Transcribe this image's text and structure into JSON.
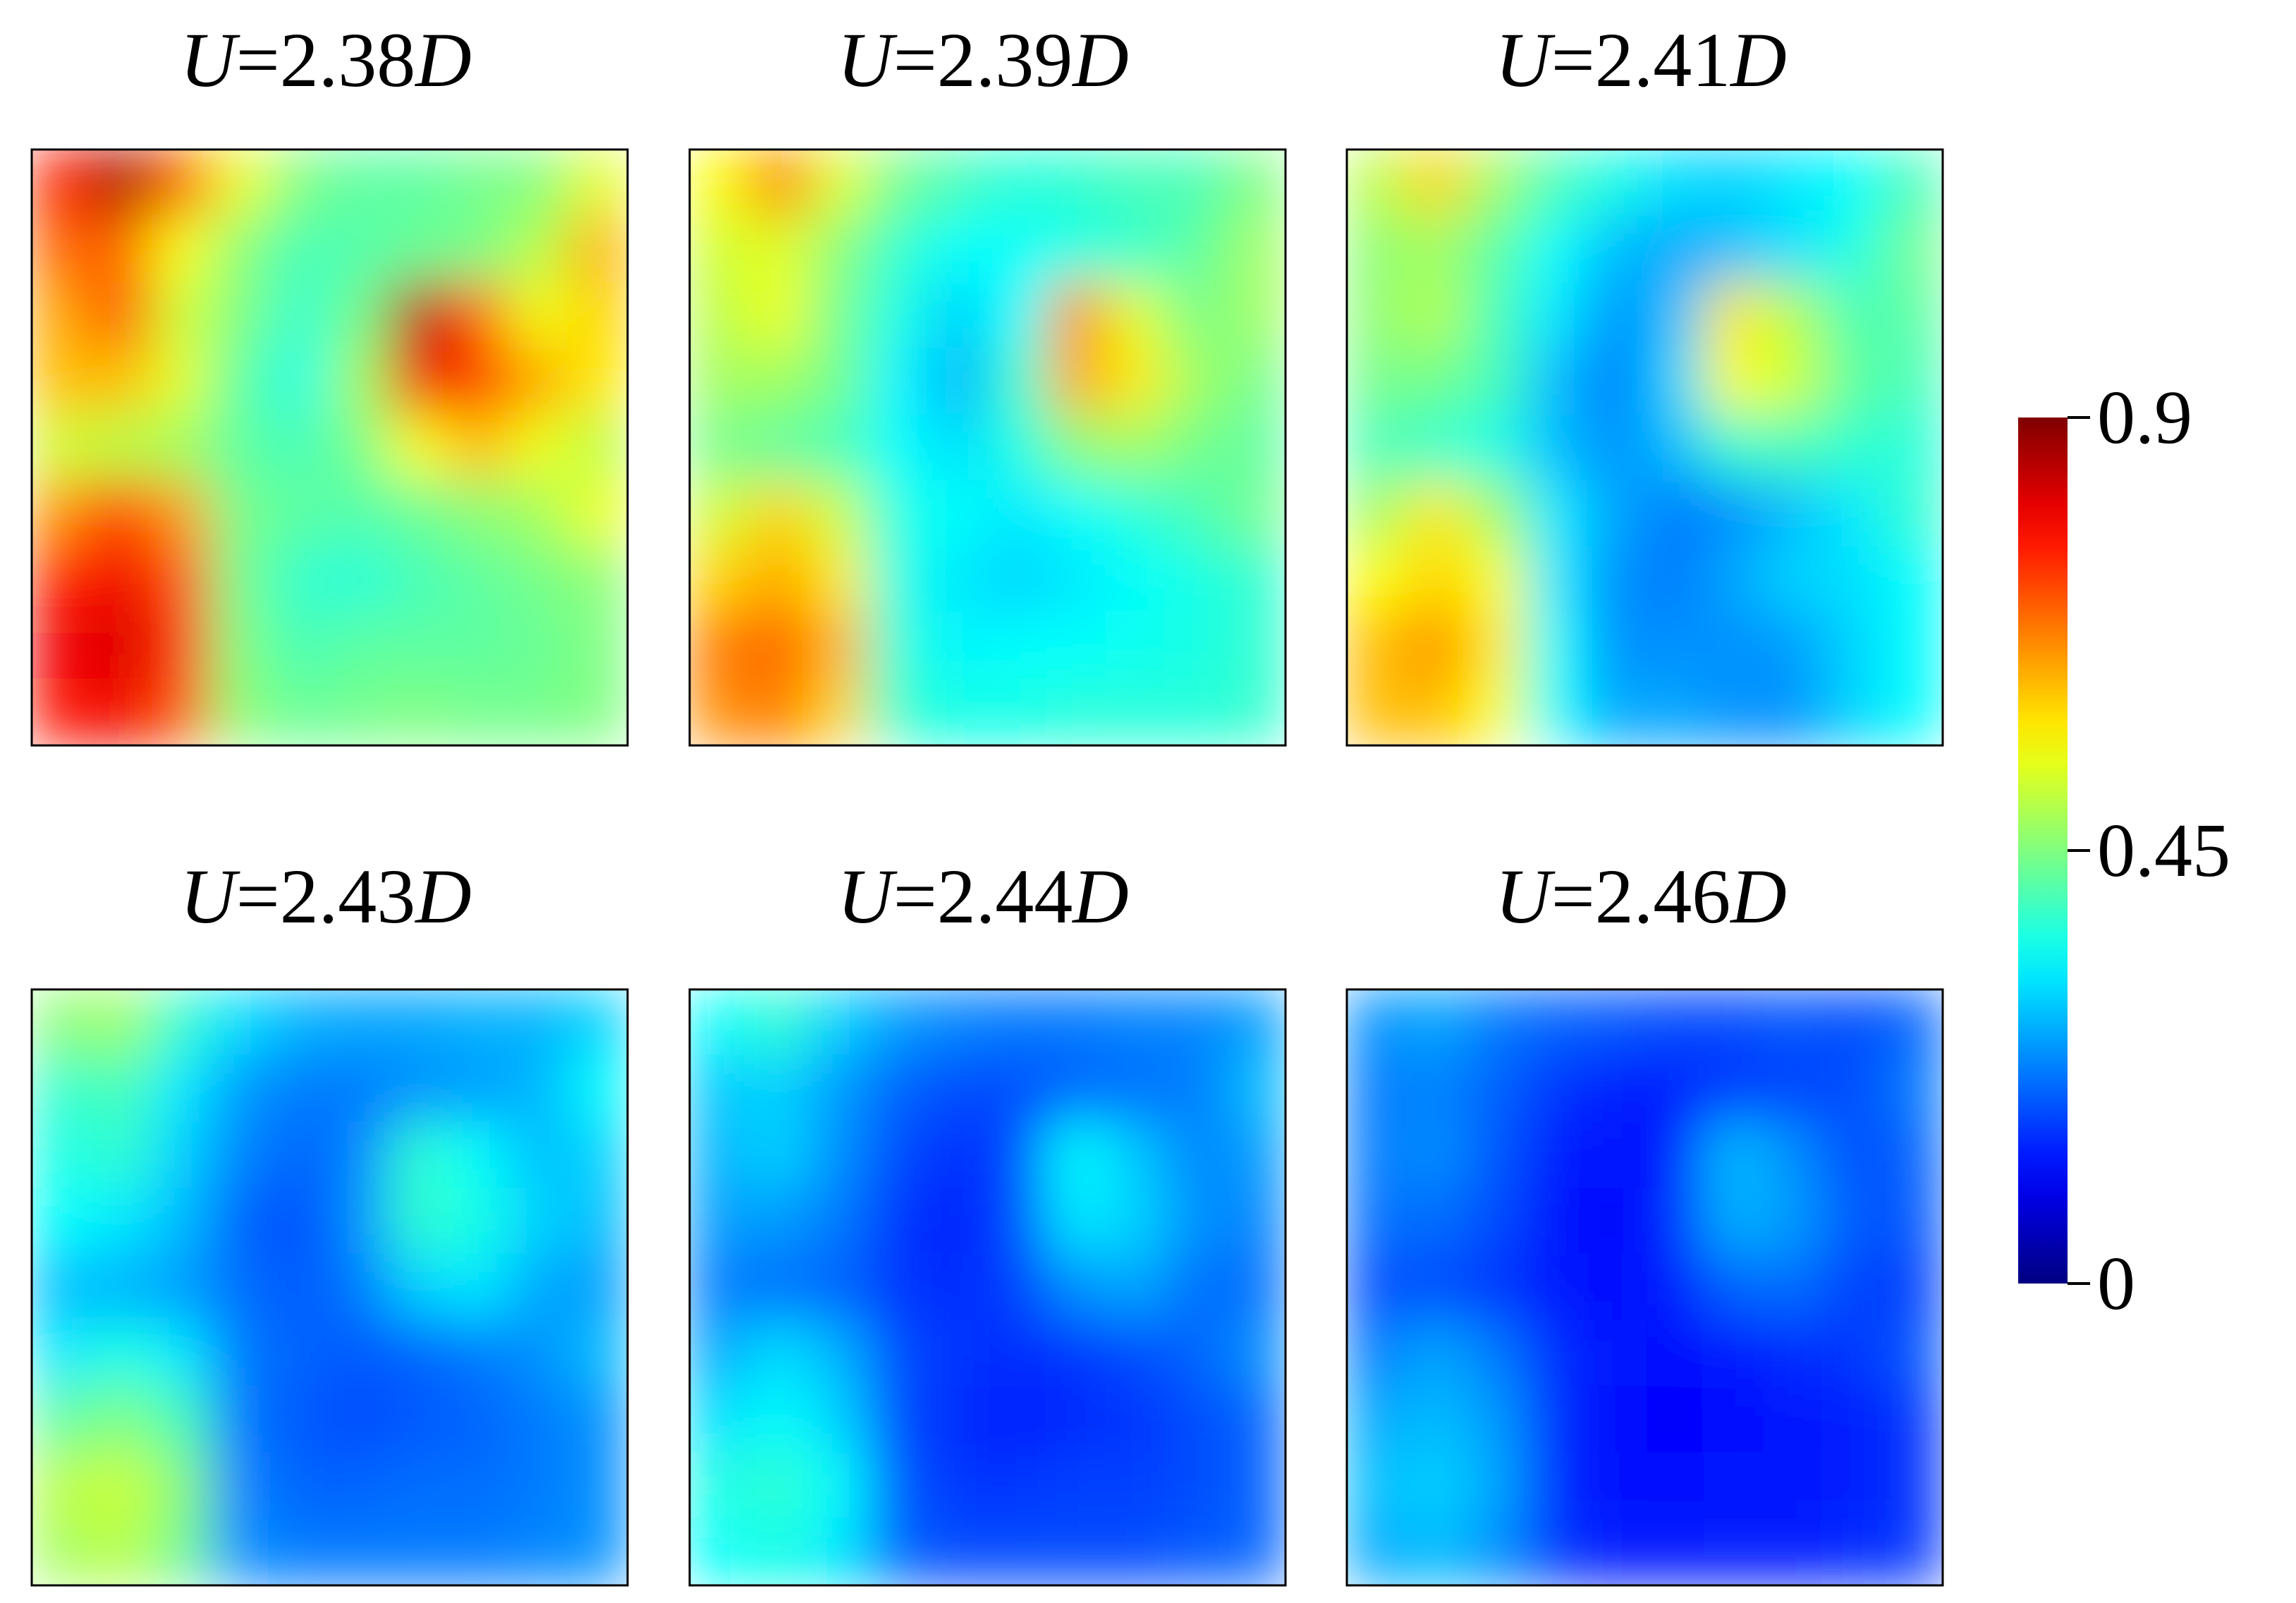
{
  "chart_data": {
    "type": "heatmap",
    "colormap": "jet",
    "colorbar": {
      "range": [
        0,
        0.9
      ],
      "ticks": [
        {
          "value": 0.9,
          "label": "0.9"
        },
        {
          "value": 0.45,
          "label": "0.45"
        },
        {
          "value": 0,
          "label": "0"
        }
      ]
    },
    "panels": [
      {
        "title_var": "U",
        "title_eq": "=2.38",
        "title_unit": "D",
        "grid": [
          [
            0.76,
            0.87,
            0.72,
            0.55,
            0.45,
            0.42,
            0.42,
            0.44,
            0.45,
            0.54
          ],
          [
            0.7,
            0.7,
            0.56,
            0.46,
            0.4,
            0.41,
            0.43,
            0.44,
            0.5,
            0.63
          ],
          [
            0.64,
            0.72,
            0.52,
            0.45,
            0.38,
            0.44,
            0.85,
            0.7,
            0.55,
            0.6
          ],
          [
            0.62,
            0.62,
            0.54,
            0.42,
            0.36,
            0.48,
            0.8,
            0.74,
            0.64,
            0.58
          ],
          [
            0.52,
            0.5,
            0.48,
            0.42,
            0.4,
            0.44,
            0.56,
            0.62,
            0.55,
            0.5
          ],
          [
            0.66,
            0.74,
            0.65,
            0.44,
            0.42,
            0.41,
            0.43,
            0.46,
            0.48,
            0.55
          ],
          [
            0.76,
            0.8,
            0.72,
            0.44,
            0.38,
            0.37,
            0.4,
            0.42,
            0.44,
            0.46
          ],
          [
            0.8,
            0.82,
            0.75,
            0.45,
            0.4,
            0.42,
            0.42,
            0.42,
            0.43,
            0.45
          ],
          [
            0.78,
            0.8,
            0.72,
            0.46,
            0.43,
            0.44,
            0.45,
            0.44,
            0.44,
            0.45
          ]
        ]
      },
      {
        "title_var": "U",
        "title_eq": "=2.39",
        "title_unit": "D",
        "grid": [
          [
            0.56,
            0.68,
            0.54,
            0.44,
            0.4,
            0.37,
            0.38,
            0.4,
            0.4,
            0.45
          ],
          [
            0.52,
            0.54,
            0.46,
            0.38,
            0.34,
            0.34,
            0.36,
            0.38,
            0.42,
            0.48
          ],
          [
            0.5,
            0.55,
            0.44,
            0.36,
            0.3,
            0.34,
            0.66,
            0.54,
            0.44,
            0.48
          ],
          [
            0.48,
            0.48,
            0.44,
            0.33,
            0.27,
            0.38,
            0.64,
            0.58,
            0.48,
            0.44
          ],
          [
            0.44,
            0.42,
            0.4,
            0.34,
            0.31,
            0.36,
            0.46,
            0.48,
            0.44,
            0.42
          ],
          [
            0.52,
            0.6,
            0.52,
            0.36,
            0.34,
            0.32,
            0.34,
            0.37,
            0.4,
            0.44
          ],
          [
            0.6,
            0.64,
            0.58,
            0.36,
            0.32,
            0.3,
            0.32,
            0.34,
            0.36,
            0.38
          ],
          [
            0.68,
            0.7,
            0.63,
            0.37,
            0.33,
            0.34,
            0.34,
            0.35,
            0.36,
            0.38
          ],
          [
            0.66,
            0.68,
            0.6,
            0.38,
            0.36,
            0.36,
            0.37,
            0.37,
            0.37,
            0.38
          ]
        ]
      },
      {
        "title_var": "U",
        "title_eq": "=2.41",
        "title_unit": "D",
        "grid": [
          [
            0.5,
            0.6,
            0.48,
            0.4,
            0.36,
            0.31,
            0.3,
            0.32,
            0.34,
            0.4
          ],
          [
            0.46,
            0.48,
            0.42,
            0.34,
            0.28,
            0.26,
            0.28,
            0.31,
            0.36,
            0.44
          ],
          [
            0.46,
            0.5,
            0.4,
            0.32,
            0.24,
            0.28,
            0.58,
            0.5,
            0.4,
            0.42
          ],
          [
            0.44,
            0.44,
            0.4,
            0.28,
            0.22,
            0.3,
            0.56,
            0.52,
            0.42,
            0.4
          ],
          [
            0.4,
            0.38,
            0.36,
            0.28,
            0.24,
            0.28,
            0.38,
            0.4,
            0.38,
            0.37
          ],
          [
            0.48,
            0.58,
            0.48,
            0.32,
            0.26,
            0.22,
            0.24,
            0.28,
            0.32,
            0.38
          ],
          [
            0.56,
            0.6,
            0.56,
            0.32,
            0.24,
            0.22,
            0.26,
            0.3,
            0.31,
            0.34
          ],
          [
            0.62,
            0.66,
            0.58,
            0.34,
            0.24,
            0.24,
            0.24,
            0.25,
            0.3,
            0.34
          ],
          [
            0.62,
            0.62,
            0.56,
            0.34,
            0.26,
            0.26,
            0.24,
            0.24,
            0.3,
            0.34
          ]
        ]
      },
      {
        "title_var": "U",
        "title_eq": "=2.43",
        "title_unit": "D",
        "grid": [
          [
            0.46,
            0.48,
            0.38,
            0.31,
            0.27,
            0.26,
            0.26,
            0.27,
            0.27,
            0.3
          ],
          [
            0.38,
            0.4,
            0.32,
            0.25,
            0.22,
            0.22,
            0.24,
            0.25,
            0.27,
            0.34
          ],
          [
            0.36,
            0.38,
            0.3,
            0.23,
            0.2,
            0.23,
            0.38,
            0.34,
            0.28,
            0.3
          ],
          [
            0.34,
            0.32,
            0.28,
            0.2,
            0.18,
            0.24,
            0.38,
            0.36,
            0.3,
            0.28
          ],
          [
            0.28,
            0.27,
            0.25,
            0.21,
            0.19,
            0.22,
            0.3,
            0.32,
            0.26,
            0.25
          ],
          [
            0.32,
            0.36,
            0.32,
            0.22,
            0.2,
            0.19,
            0.2,
            0.22,
            0.24,
            0.28
          ],
          [
            0.42,
            0.45,
            0.4,
            0.22,
            0.19,
            0.18,
            0.19,
            0.2,
            0.22,
            0.24
          ],
          [
            0.5,
            0.52,
            0.46,
            0.23,
            0.2,
            0.2,
            0.21,
            0.21,
            0.22,
            0.24
          ],
          [
            0.48,
            0.5,
            0.44,
            0.24,
            0.22,
            0.22,
            0.22,
            0.22,
            0.23,
            0.24
          ]
        ]
      },
      {
        "title_var": "U",
        "title_eq": "=2.44",
        "title_unit": "D",
        "grid": [
          [
            0.34,
            0.38,
            0.3,
            0.25,
            0.23,
            0.22,
            0.22,
            0.23,
            0.23,
            0.25
          ],
          [
            0.29,
            0.3,
            0.25,
            0.2,
            0.18,
            0.18,
            0.2,
            0.21,
            0.22,
            0.28
          ],
          [
            0.27,
            0.3,
            0.24,
            0.18,
            0.15,
            0.18,
            0.34,
            0.29,
            0.23,
            0.25
          ],
          [
            0.25,
            0.25,
            0.22,
            0.16,
            0.14,
            0.18,
            0.32,
            0.3,
            0.24,
            0.23
          ],
          [
            0.22,
            0.21,
            0.2,
            0.16,
            0.15,
            0.17,
            0.24,
            0.26,
            0.21,
            0.21
          ],
          [
            0.26,
            0.31,
            0.27,
            0.18,
            0.16,
            0.15,
            0.16,
            0.18,
            0.2,
            0.24
          ],
          [
            0.31,
            0.34,
            0.3,
            0.18,
            0.15,
            0.14,
            0.15,
            0.16,
            0.18,
            0.2
          ],
          [
            0.36,
            0.38,
            0.34,
            0.19,
            0.16,
            0.16,
            0.17,
            0.17,
            0.18,
            0.2
          ],
          [
            0.34,
            0.36,
            0.32,
            0.2,
            0.18,
            0.18,
            0.18,
            0.18,
            0.19,
            0.2
          ]
        ]
      },
      {
        "title_var": "U",
        "title_eq": "=2.46",
        "title_unit": "D",
        "grid": [
          [
            0.24,
            0.26,
            0.22,
            0.2,
            0.19,
            0.18,
            0.18,
            0.19,
            0.18,
            0.2
          ],
          [
            0.22,
            0.23,
            0.2,
            0.16,
            0.14,
            0.14,
            0.16,
            0.17,
            0.18,
            0.22
          ],
          [
            0.22,
            0.24,
            0.19,
            0.14,
            0.12,
            0.14,
            0.28,
            0.24,
            0.18,
            0.2
          ],
          [
            0.21,
            0.21,
            0.18,
            0.13,
            0.11,
            0.15,
            0.27,
            0.25,
            0.19,
            0.19
          ],
          [
            0.18,
            0.18,
            0.16,
            0.13,
            0.12,
            0.14,
            0.2,
            0.21,
            0.17,
            0.17
          ],
          [
            0.22,
            0.26,
            0.22,
            0.15,
            0.13,
            0.12,
            0.13,
            0.15,
            0.16,
            0.19
          ],
          [
            0.26,
            0.28,
            0.25,
            0.15,
            0.12,
            0.11,
            0.12,
            0.13,
            0.14,
            0.16
          ],
          [
            0.28,
            0.3,
            0.26,
            0.15,
            0.12,
            0.12,
            0.13,
            0.13,
            0.14,
            0.16
          ],
          [
            0.26,
            0.28,
            0.24,
            0.16,
            0.14,
            0.14,
            0.14,
            0.14,
            0.15,
            0.16
          ]
        ]
      }
    ]
  }
}
